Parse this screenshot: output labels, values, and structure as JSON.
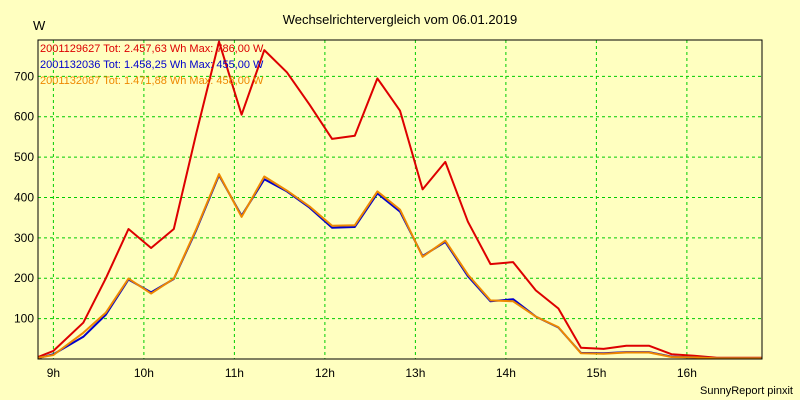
{
  "chart_data": {
    "type": "line",
    "title": "Wechselrichtervergleich vom 06.01.2019",
    "ylabel": "W",
    "footer": "SunnyReport pinxit",
    "ylim": [
      0,
      790
    ],
    "xlim": [
      8.83,
      16.83
    ],
    "yticks": [
      100,
      200,
      300,
      400,
      500,
      600,
      700
    ],
    "xticks": [
      {
        "value": 9,
        "label": "9h"
      },
      {
        "value": 10,
        "label": "10h"
      },
      {
        "value": 11,
        "label": "11h"
      },
      {
        "value": 12,
        "label": "12h"
      },
      {
        "value": 13,
        "label": "13h"
      },
      {
        "value": 14,
        "label": "14h"
      },
      {
        "value": 15,
        "label": "15h"
      },
      {
        "value": 16,
        "label": "16h"
      }
    ],
    "grid": true,
    "legend_position": "top-left",
    "x": [
      8.83,
      9.0,
      9.33,
      9.58,
      9.83,
      10.08,
      10.33,
      10.58,
      10.83,
      11.08,
      11.33,
      11.58,
      11.83,
      12.08,
      12.33,
      12.58,
      12.83,
      13.08,
      13.33,
      13.58,
      13.83,
      14.08,
      14.33,
      14.58,
      14.83,
      15.08,
      15.33,
      15.58,
      15.83,
      16.08,
      16.33,
      16.58,
      16.83
    ],
    "series": [
      {
        "name": "2001129627",
        "legend": "2001129627 Tot: 2.457,63 Wh Max: 786,00 W",
        "color": "#dd0000",
        "values": [
          5,
          20,
          90,
          200,
          322,
          275,
          322,
          560,
          786,
          605,
          765,
          710,
          630,
          545,
          553,
          695,
          615,
          420,
          488,
          340,
          235,
          240,
          170,
          125,
          28,
          25,
          33,
          33,
          12,
          8,
          3,
          3,
          3
        ]
      },
      {
        "name": "2001132036",
        "legend": "2001132036 Tot: 1.458,25 Wh Max: 455,00 W",
        "color": "#0000cc",
        "values": [
          2,
          12,
          55,
          110,
          197,
          165,
          198,
          320,
          455,
          355,
          445,
          415,
          375,
          325,
          327,
          410,
          365,
          255,
          290,
          205,
          143,
          148,
          105,
          78,
          15,
          14,
          17,
          17,
          6,
          4,
          2,
          2,
          2
        ]
      },
      {
        "name": "2001132087",
        "legend": "2001132087 Tot: 1.471,88 Wh Max: 458,00 W",
        "color": "#ee8800",
        "values": [
          3,
          10,
          65,
          115,
          199,
          162,
          199,
          323,
          458,
          352,
          452,
          417,
          378,
          330,
          331,
          415,
          370,
          253,
          293,
          209,
          145,
          143,
          105,
          79,
          14,
          13,
          16,
          16,
          5,
          4,
          2,
          2,
          2
        ]
      }
    ]
  }
}
